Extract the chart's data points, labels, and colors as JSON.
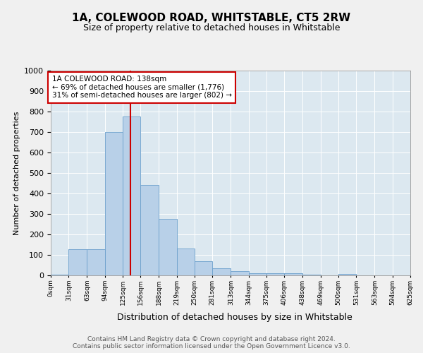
{
  "title": "1A, COLEWOOD ROAD, WHITSTABLE, CT5 2RW",
  "subtitle": "Size of property relative to detached houses in Whitstable",
  "xlabel": "Distribution of detached houses by size in Whitstable",
  "ylabel": "Number of detached properties",
  "bar_color": "#b8d0e8",
  "bar_edge_color": "#6ca0cc",
  "background_color": "#dce8f0",
  "grid_color": "#ffffff",
  "fig_bg_color": "#f0f0f0",
  "red_line_x": 138,
  "annotation_text": "1A COLEWOOD ROAD: 138sqm\n← 69% of detached houses are smaller (1,776)\n31% of semi-detached houses are larger (802) →",
  "annotation_box_facecolor": "#ffffff",
  "annotation_box_edgecolor": "#cc0000",
  "footer_line1": "Contains HM Land Registry data © Crown copyright and database right 2024.",
  "footer_line2": "Contains public sector information licensed under the Open Government Licence v3.0.",
  "bins": [
    0,
    31,
    63,
    94,
    125,
    156,
    188,
    219,
    250,
    281,
    313,
    344,
    375,
    406,
    438,
    469,
    500,
    531,
    563,
    594,
    625
  ],
  "values": [
    5,
    127,
    127,
    700,
    775,
    440,
    275,
    130,
    70,
    35,
    20,
    10,
    10,
    10,
    5,
    0,
    7,
    0,
    0,
    0
  ],
  "ylim": [
    0,
    1000
  ],
  "yticks": [
    0,
    100,
    200,
    300,
    400,
    500,
    600,
    700,
    800,
    900,
    1000
  ],
  "title_fontsize": 11,
  "subtitle_fontsize": 9,
  "ylabel_fontsize": 8,
  "xlabel_fontsize": 9,
  "ytick_fontsize": 8,
  "xtick_fontsize": 6.5,
  "footer_fontsize": 6.5,
  "annotation_fontsize": 7.5
}
